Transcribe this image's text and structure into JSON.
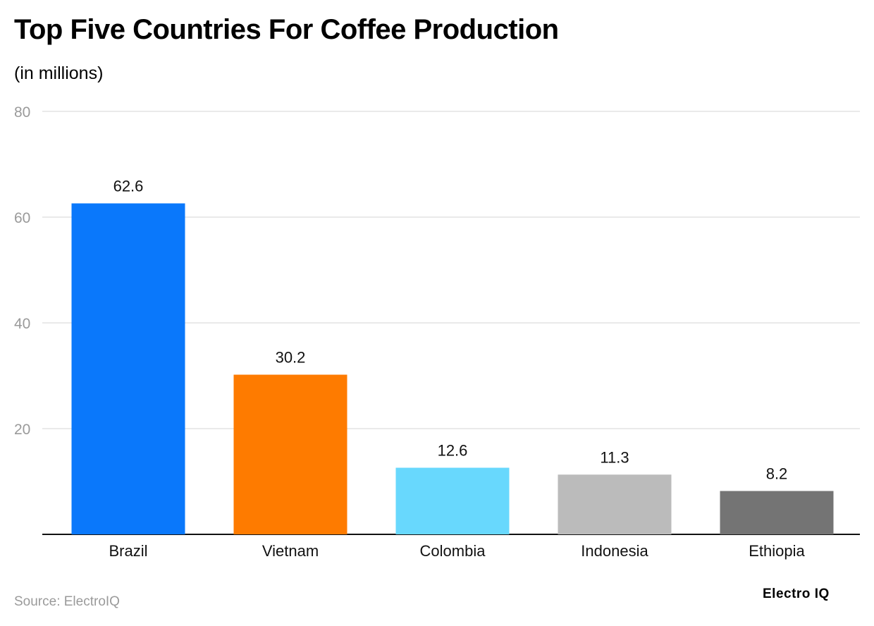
{
  "title": "Top Five Countries For Coffee Production",
  "subtitle": "(in millions)",
  "source": "Source: ElectroIQ",
  "brand": "Electro IQ",
  "chart_data": {
    "type": "bar",
    "title": "Top Five Countries For Coffee Production",
    "subtitle": "(in millions)",
    "categories": [
      "Brazil",
      "Vietnam",
      "Colombia",
      "Indonesia",
      "Ethiopia"
    ],
    "values": [
      62.6,
      30.2,
      12.6,
      11.3,
      8.2
    ],
    "data_labels": [
      "62.6",
      "30.2",
      "12.6",
      "11.3",
      "8.2"
    ],
    "colors": [
      "#0a78fb",
      "#fe7b00",
      "#68d8fd",
      "#bbbbbb",
      "#747474"
    ],
    "ylim": [
      0,
      80
    ],
    "yticks": [
      20,
      40,
      60,
      80
    ],
    "ytick_labels": [
      "20",
      "40",
      "60",
      "80"
    ],
    "xlabel": "",
    "ylabel": "",
    "grid": true,
    "legend": "none"
  }
}
